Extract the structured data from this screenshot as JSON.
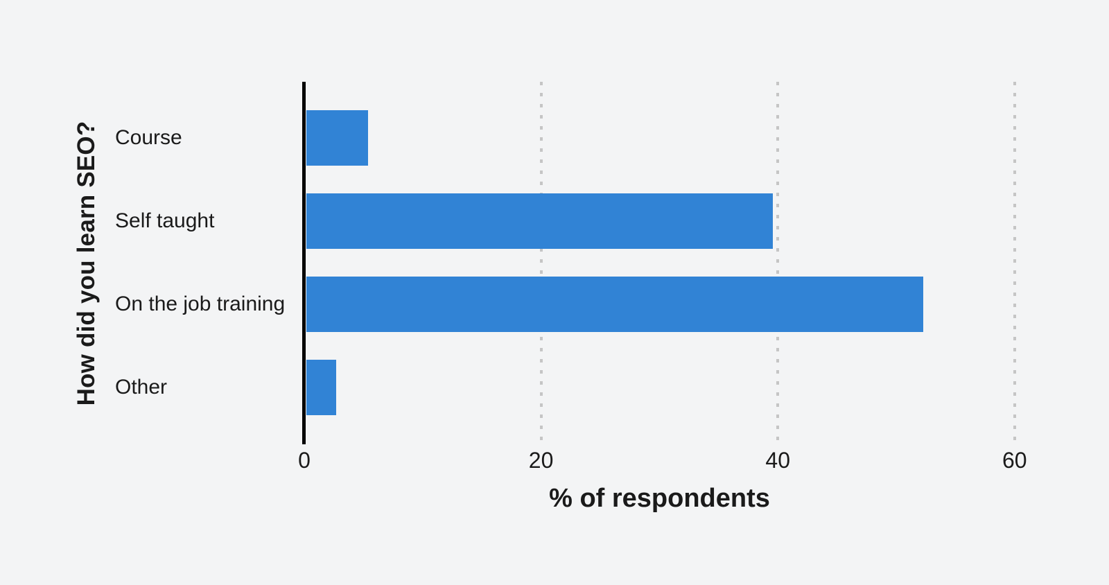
{
  "chart_data": {
    "type": "bar",
    "orientation": "horizontal",
    "title": "",
    "ylabel": "How did you learn SEO?",
    "xlabel": "% of respondents",
    "categories": [
      "Course",
      "Self taught",
      "On the job training",
      "Other"
    ],
    "values": [
      5.4,
      39.6,
      52.3,
      2.7
    ],
    "xticks": [
      0,
      20,
      40,
      60
    ],
    "xlim": [
      0,
      66
    ],
    "grid": "vertical-dotted",
    "legend": "none",
    "colors": {
      "bar": "#3183D5",
      "background": "#F3F4F5",
      "gridline": "#C5C5C5",
      "axis_line": "#000000",
      "text": "#1A1A1A"
    }
  }
}
